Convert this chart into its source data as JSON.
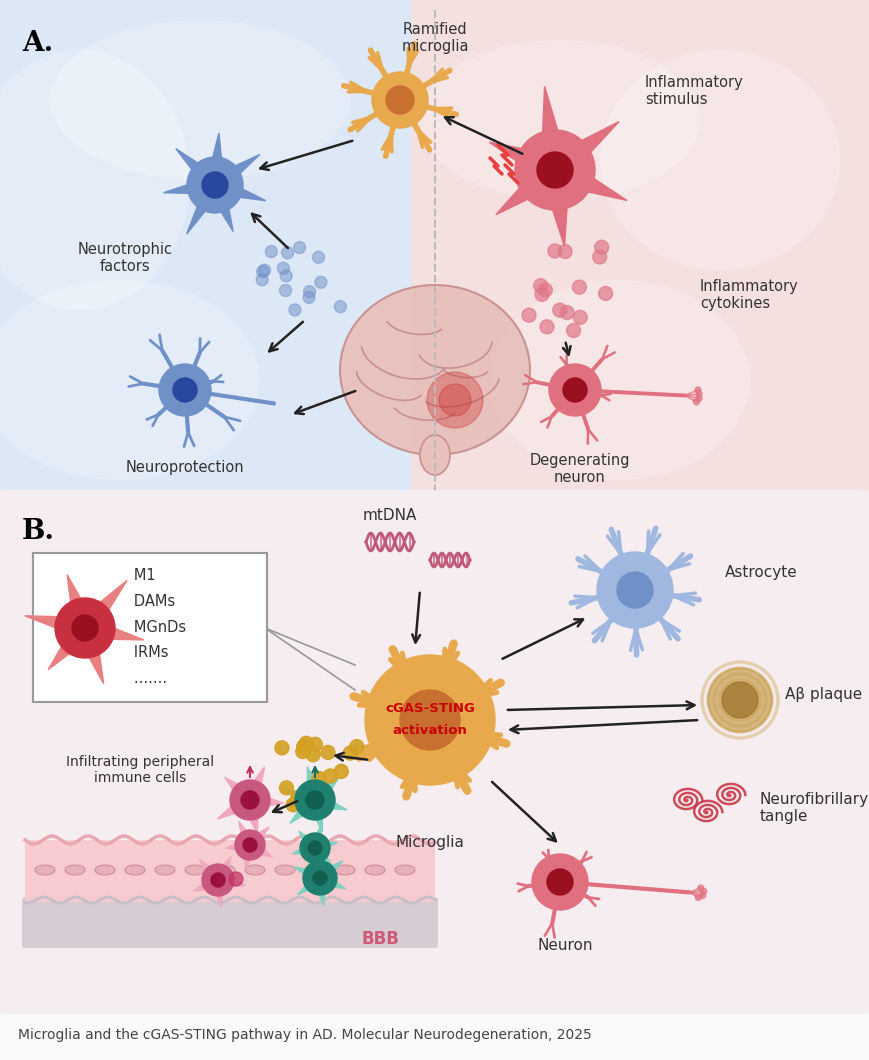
{
  "bg_color": "#FAFAFA",
  "panel_a_bg_left": "#DCE8F5",
  "panel_a_bg_right": "#F5E0E0",
  "panel_b_bg": "#F5EEF0",
  "panel_b_bbb_bg": "#F9C8CE",
  "label_a": "A.",
  "label_b": "B.",
  "caption": "Microglia and the cGAS-STING pathway in AD. Molecular Neurodegeneration, 2025",
  "text_ramified": "Ramified\nmicroglia",
  "text_inflammatory_stim": "Inflammatory\nstimulus",
  "text_neurotrophic": "Neurotrophic\nfactors",
  "text_neuroprotection": "Neuroprotection",
  "text_inflammatory_cyto": "Inflammatory\ncytokines",
  "text_degenerating": "Degenerating\nneuron",
  "text_mtdna": "mtDNA",
  "text_cgas_sting": "cGAS-STING\nactivation",
  "text_microglia": "Microglia",
  "text_astrocyte": "Astrocyte",
  "text_ab_plaque": "Aβ plaque",
  "text_neurofibrillary": "Neurofibrillary\ntangle",
  "text_neuron": "Neuron",
  "text_bbb": "BBB",
  "text_infiltrating": "Infiltrating peripheral\nimmune cells",
  "text_box_m1": "   M1\n   DAMs\n   MGnDs\n   IRMs\n   .......",
  "orange_body": "#E8A84C",
  "orange_dark": "#D4853A",
  "orange_nucleus": "#C87030",
  "blue_cell": "#7090C8",
  "blue_dark": "#3A5490",
  "blue_light": "#A0B8E0",
  "blue_nucleus": "#2848A0",
  "red_cell": "#E07080",
  "red_dark": "#C83040",
  "red_nucleus": "#9A1020",
  "pink_cell": "#E890B0",
  "pink_dark": "#C85880",
  "teal_cell": "#60C0A8",
  "teal_dark": "#208070",
  "gold": "#D4A020",
  "brain_fill": "#E8C0BC",
  "brain_edge": "#C89090",
  "amyloid_fill": "#C8A050",
  "tangle_color": "#C83040",
  "dna_color": "#C05878",
  "arrow_color": "#222222",
  "gray_line": "#999999",
  "bbb_edge": "#D09898",
  "bbb_gray_bottom": "#C8C0C8"
}
